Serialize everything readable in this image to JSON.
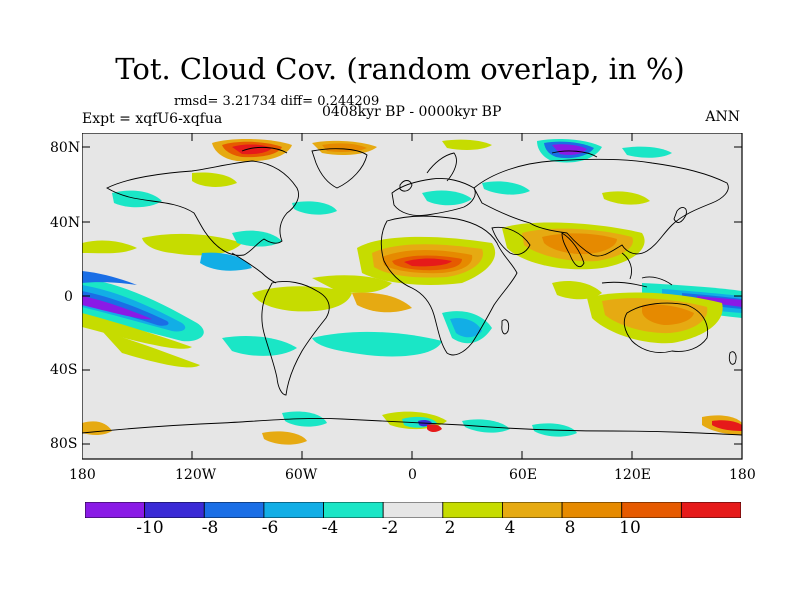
{
  "title": "Tot. Cloud Cov. (random overlap, in %)",
  "stats": "rmsd= 3.21734 diff= 0.244209",
  "expt": "Expt = xqfU6-xqfua",
  "period": "0408kyr BP - 0000kyr BP",
  "season": "ANN",
  "axes": {
    "lat_ticks": [
      "80N",
      "40N",
      "0",
      "40S",
      "80S"
    ],
    "lon_ticks": [
      "180",
      "120W",
      "60W",
      "0",
      "60E",
      "120E",
      "180"
    ]
  },
  "colorbar": {
    "colors": [
      "#8a1ae6",
      "#3a2ad6",
      "#1a6ee6",
      "#12aee6",
      "#1ae6c6",
      "#e6e6e6",
      "#c6dc00",
      "#e6aa12",
      "#e68a00",
      "#e65a00",
      "#e61a1a"
    ],
    "labels": [
      "-10",
      "-8",
      "-6",
      "-4",
      "-2",
      "2",
      "4",
      "8",
      "10"
    ]
  },
  "colors": {
    "ocean_background": "#e6e6e6",
    "coastline": "#000000"
  }
}
